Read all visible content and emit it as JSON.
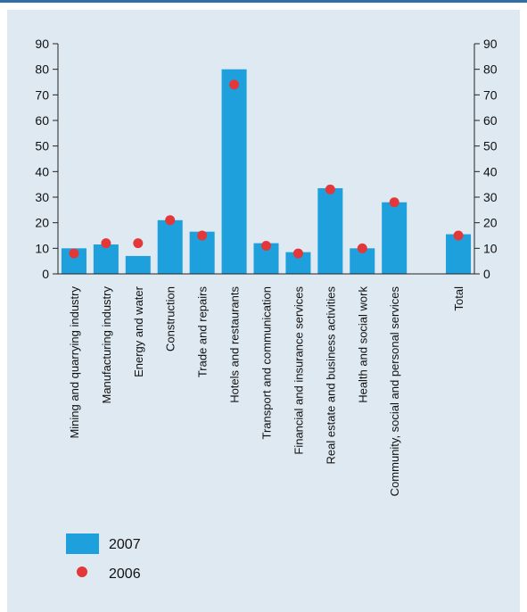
{
  "chart_data": {
    "type": "bar",
    "categories": [
      "Mining and quarrying industry",
      "Manufacturing industry",
      "Energy and water",
      "Construction",
      "Trade and repairs",
      "Hotels and restaurants",
      "Transport and communication",
      "Financial and insurance services",
      "Real estate and business activities",
      "Health and social work",
      "Community, social and personal services",
      "",
      "Total"
    ],
    "series": [
      {
        "name": "2007",
        "mark": "bar",
        "color": "#1ea0dd",
        "values": [
          10,
          11.5,
          7,
          21,
          16.5,
          80,
          12,
          8.5,
          33.5,
          10,
          28,
          null,
          15.5
        ]
      },
      {
        "name": "2006",
        "mark": "dot",
        "color": "#e2383a",
        "values": [
          8,
          12,
          12,
          21,
          15,
          74,
          11,
          8,
          33,
          10,
          28,
          null,
          15
        ]
      }
    ],
    "ylim": [
      0,
      90
    ],
    "yticks": [
      "0",
      "10",
      "20",
      "30",
      "40",
      "50",
      "60",
      "70",
      "80",
      "90"
    ],
    "secondary_y_axis": true,
    "grid": false,
    "legend_placement": "bottom-left"
  }
}
